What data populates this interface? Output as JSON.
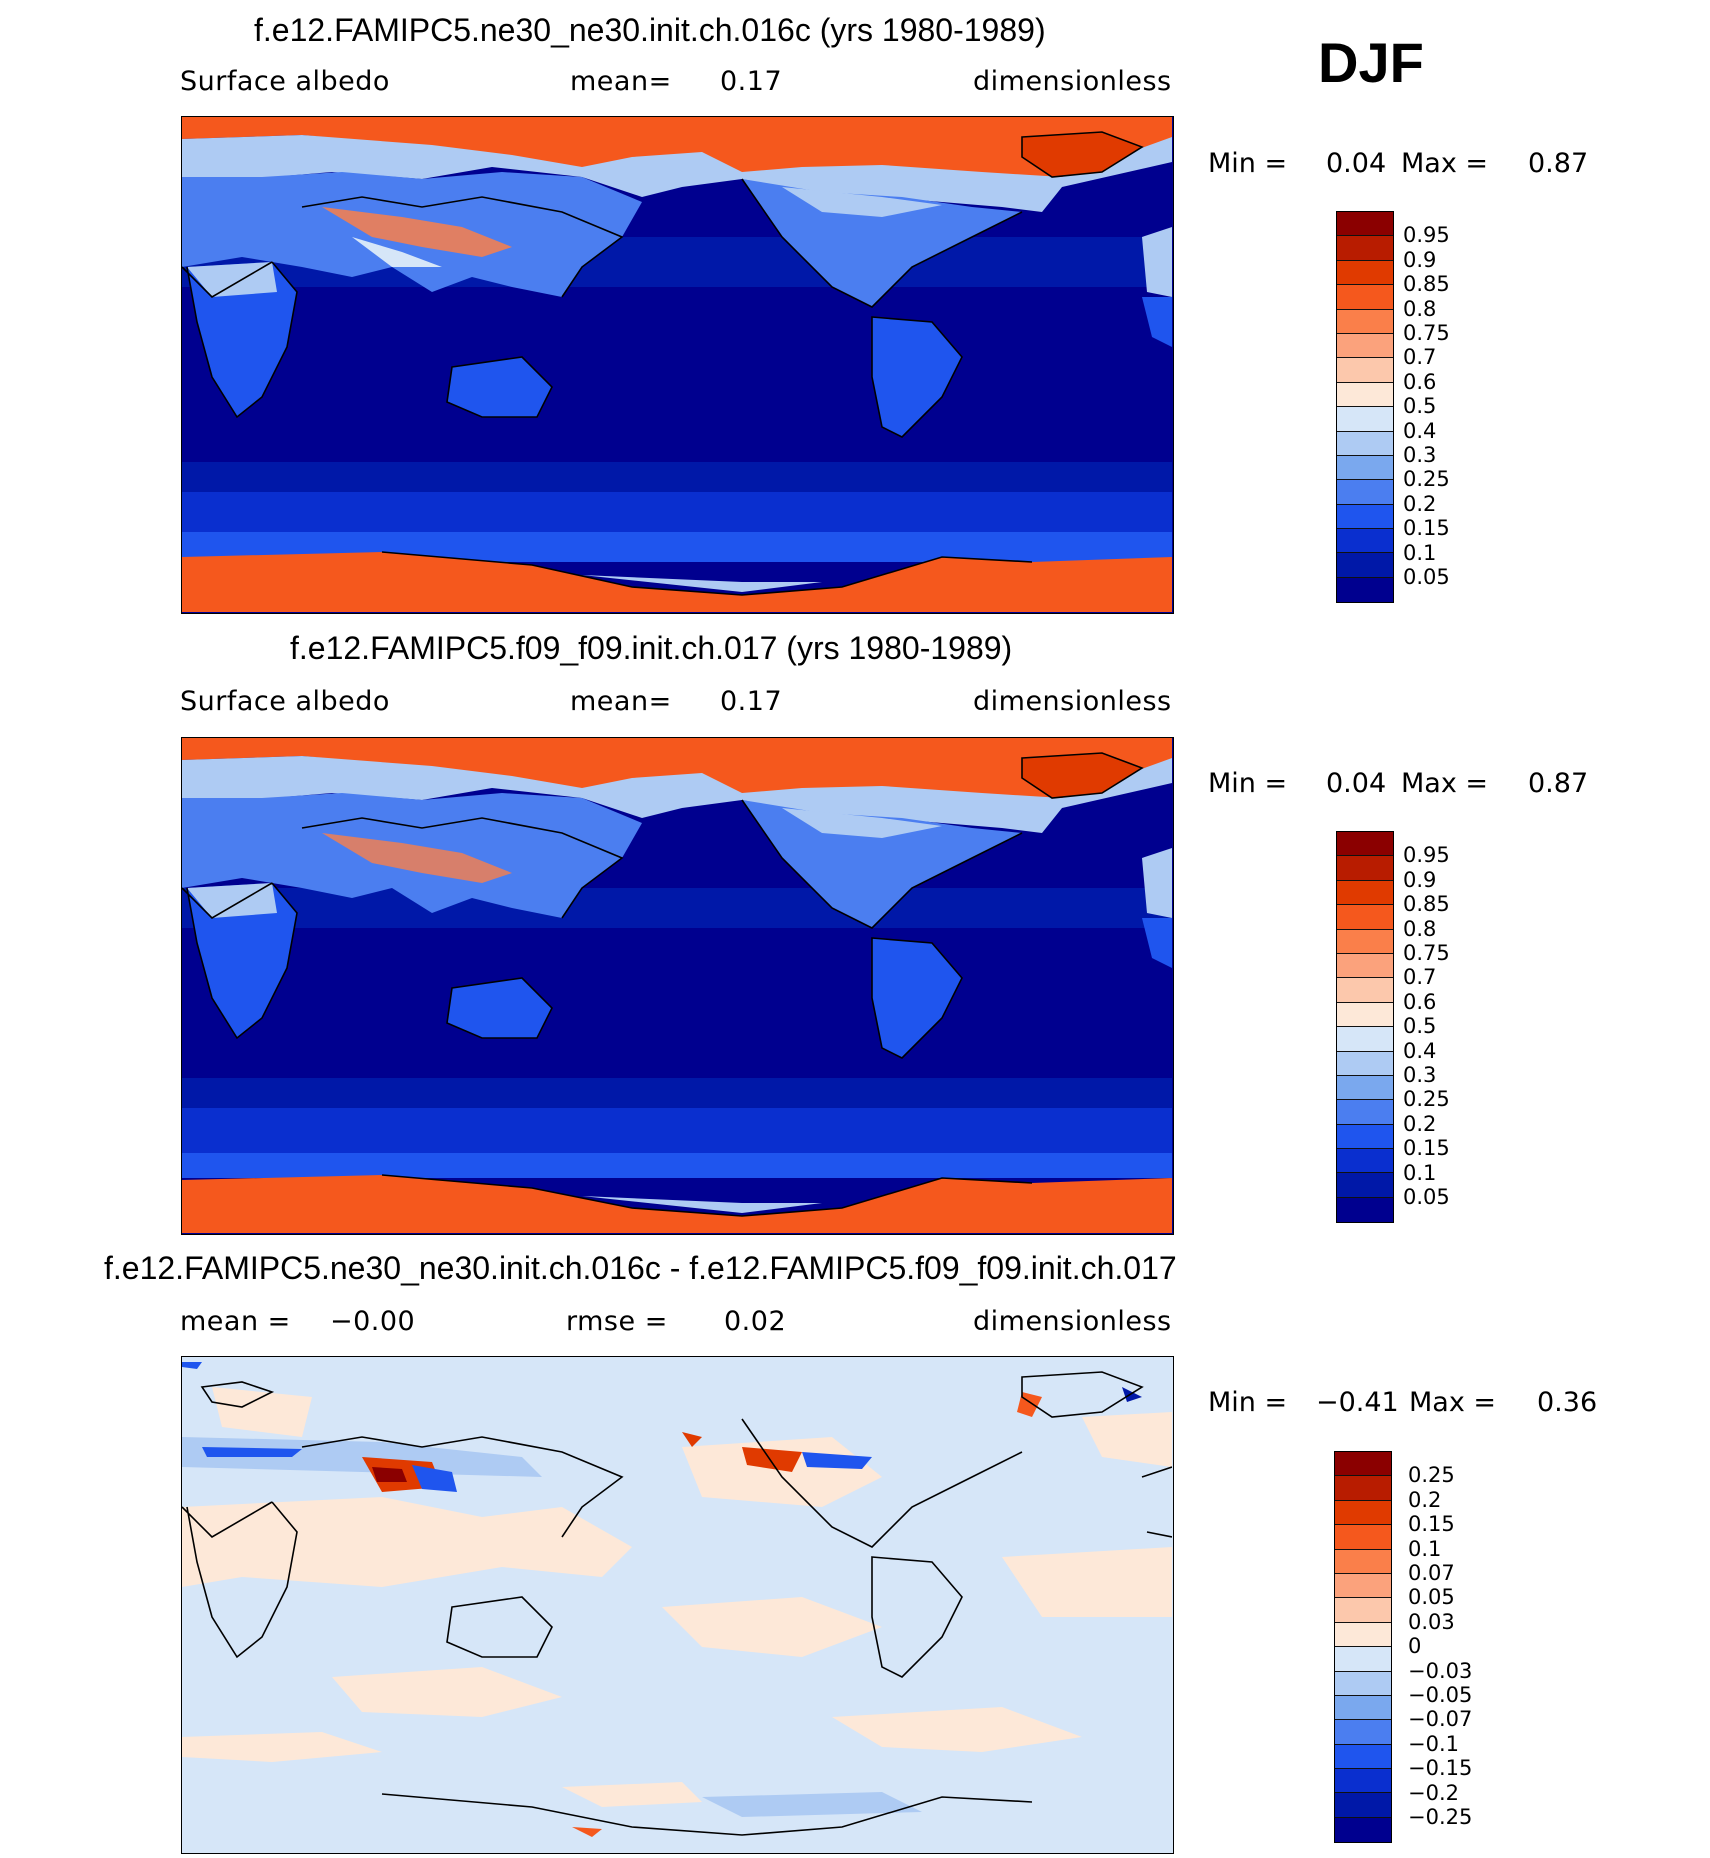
{
  "season": "DJF",
  "panels": [
    {
      "title": "f.e12.FAMIPC5.ne30_ne30.init.ch.016c (yrs 1980-1989)",
      "left_label": "Surface albedo",
      "center_label": "mean=",
      "center_value": "0.17",
      "units": "dimensionless",
      "min_label": "Min =",
      "min_value": "0.04",
      "max_label": "Max =",
      "max_value": "0.87",
      "colorbar_labels": [
        "0.95",
        "0.9",
        "0.85",
        "0.8",
        "0.75",
        "0.7",
        "0.6",
        "0.5",
        "0.4",
        "0.3",
        "0.25",
        "0.2",
        "0.15",
        "0.1",
        "0.05"
      ],
      "colorbar_colors": [
        "#8b0000",
        "#b81c00",
        "#e03a00",
        "#f5581d",
        "#fa7f4a",
        "#fba27c",
        "#fcc8ac",
        "#fde8d8",
        "#d6e6f8",
        "#aecbf3",
        "#7aa8ee",
        "#4b7ef0",
        "#1f55ee",
        "#0a2fcf",
        "#0018a8",
        "#00008f"
      ]
    },
    {
      "title": "f.e12.FAMIPC5.f09_f09.init.ch.017 (yrs 1980-1989)",
      "left_label": "Surface albedo",
      "center_label": "mean=",
      "center_value": "0.17",
      "units": "dimensionless",
      "min_label": "Min =",
      "min_value": "0.04",
      "max_label": "Max =",
      "max_value": "0.87",
      "colorbar_labels": [
        "0.95",
        "0.9",
        "0.85",
        "0.8",
        "0.75",
        "0.7",
        "0.6",
        "0.5",
        "0.4",
        "0.3",
        "0.25",
        "0.2",
        "0.15",
        "0.1",
        "0.05"
      ],
      "colorbar_colors": [
        "#8b0000",
        "#b81c00",
        "#e03a00",
        "#f5581d",
        "#fa7f4a",
        "#fba27c",
        "#fcc8ac",
        "#fde8d8",
        "#d6e6f8",
        "#aecbf3",
        "#7aa8ee",
        "#4b7ef0",
        "#1f55ee",
        "#0a2fcf",
        "#0018a8",
        "#00008f"
      ]
    },
    {
      "title": "f.e12.FAMIPC5.ne30_ne30.init.ch.016c - f.e12.FAMIPC5.f09_f09.init.ch.017",
      "left_label": "mean =",
      "left_value": "−0.00",
      "center_label": "rmse =",
      "center_value": "0.02",
      "units": "dimensionless",
      "min_label": "Min =",
      "min_value": "−0.41",
      "max_label": "Max =",
      "max_value": "0.36",
      "colorbar_labels": [
        "0.25",
        "0.2",
        "0.15",
        "0.1",
        "0.07",
        "0.05",
        "0.03",
        "0",
        "−0.03",
        "−0.05",
        "−0.07",
        "−0.1",
        "−0.15",
        "−0.2",
        "−0.25"
      ],
      "colorbar_colors": [
        "#8b0000",
        "#b81c00",
        "#e03a00",
        "#f5581d",
        "#fa7f4a",
        "#fba27c",
        "#fcc8ac",
        "#fde8d8",
        "#d6e6f8",
        "#aecbf3",
        "#7aa8ee",
        "#4b7ef0",
        "#1f55ee",
        "#0a2fcf",
        "#0018a8",
        "#00008f"
      ]
    }
  ],
  "map_colors": {
    "ocean_low": "#00008f",
    "ocean_mid": "#0018a8",
    "ocean_band": "#0a2fcf",
    "land_low": "#1f55ee",
    "land_mid": "#4b7ef0",
    "land_light": "#aecbf3",
    "snow": "#f5581d",
    "snow_light": "#fcc8ac",
    "diff_pos": "#fde8d8",
    "diff_neg": "#d6e6f8",
    "diff_hot": "#e03a00",
    "diff_cold": "#1f55ee"
  }
}
